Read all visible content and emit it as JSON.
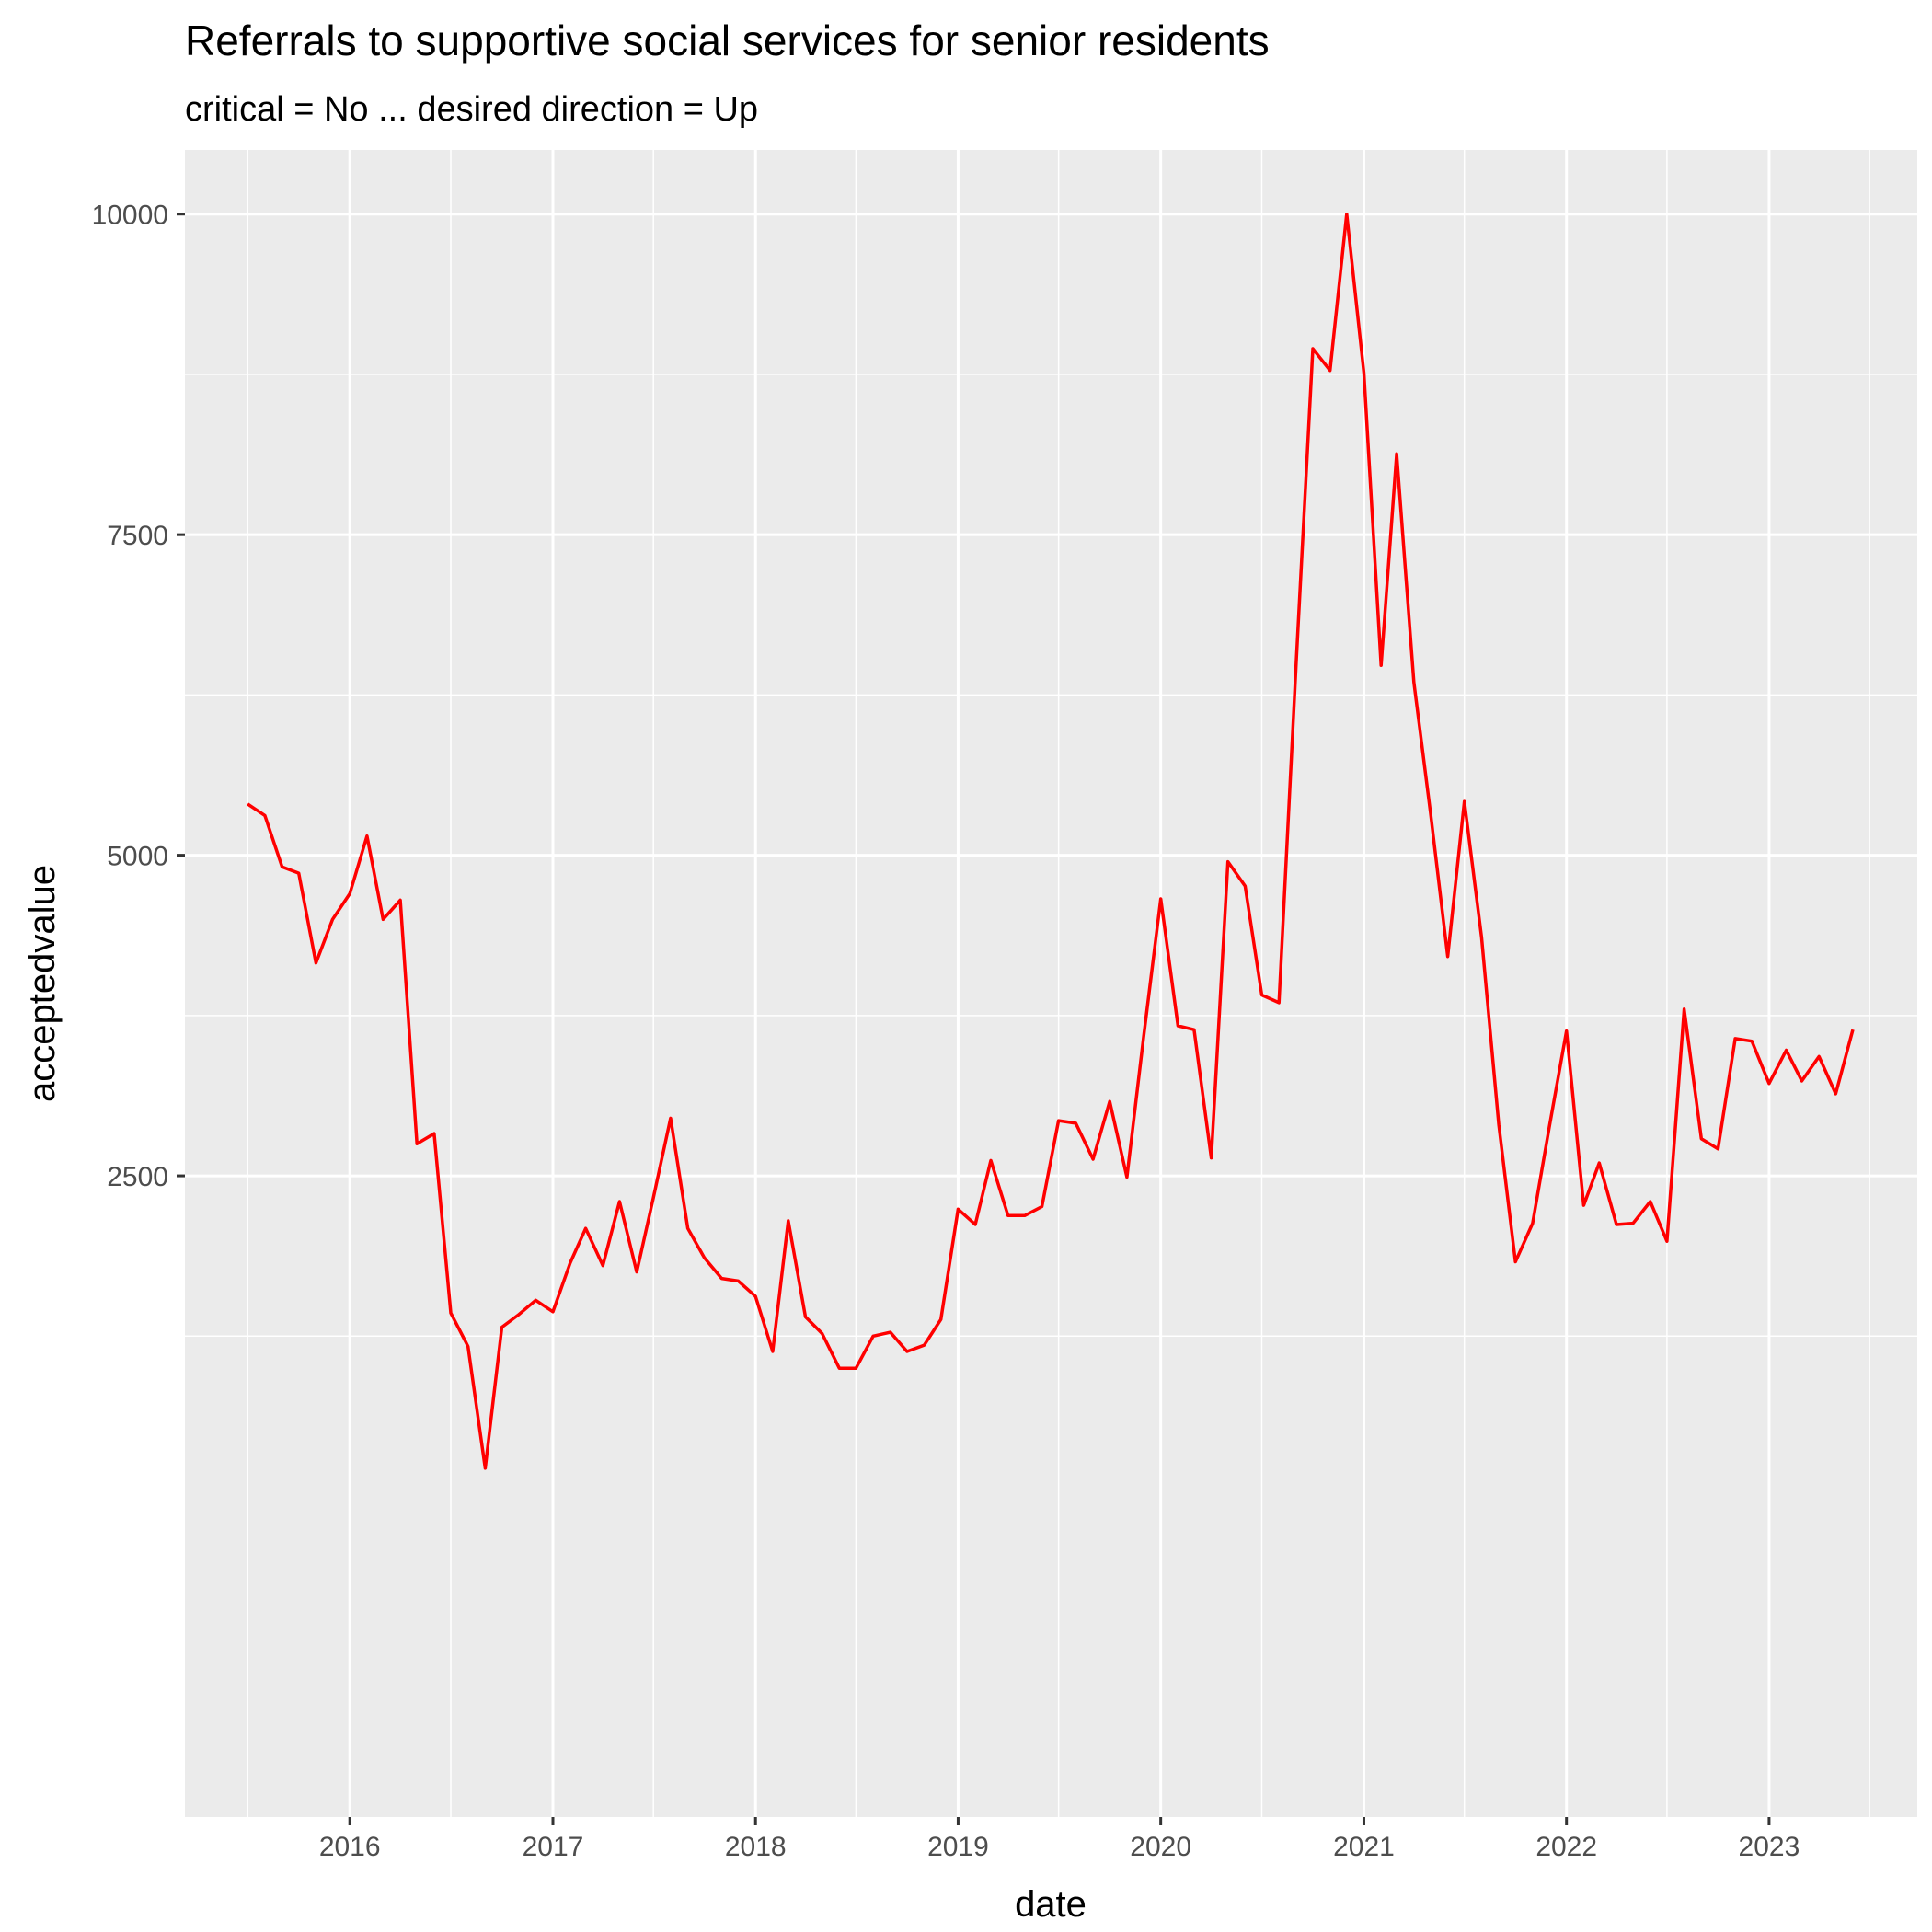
{
  "chart_data": {
    "type": "line",
    "title": "Referrals to supportive social services for senior residents",
    "subtitle": "critical = No ... desired direction = Up",
    "xlabel": "date",
    "ylabel": "acceptedvalue",
    "x_tick_labels": [
      "2016",
      "2017",
      "2018",
      "2019",
      "2020",
      "2021",
      "2022",
      "2023"
    ],
    "y_tick_labels": [
      "2500",
      "5000",
      "7500",
      "10000"
    ],
    "y_ticks": [
      2500,
      5000,
      7500,
      10000
    ],
    "ylim": [
      -2500,
      10500
    ],
    "xlim": [
      "2015-03-10",
      "2023-09-25"
    ],
    "grid": true,
    "line_color": "#ff0000",
    "panel_color": "#ebebeb",
    "series": [
      {
        "x": [
          "2015-07-01",
          "2015-08-01",
          "2015-09-01",
          "2015-10-01",
          "2015-11-01",
          "2015-12-01",
          "2016-01-01",
          "2016-02-01",
          "2016-03-01",
          "2016-04-01",
          "2016-05-01",
          "2016-06-01",
          "2016-07-01",
          "2016-08-01",
          "2016-09-01",
          "2016-10-01",
          "2016-11-01",
          "2016-12-01",
          "2017-01-01",
          "2017-02-01",
          "2017-03-01",
          "2017-04-01",
          "2017-05-01",
          "2017-06-01",
          "2017-07-01",
          "2017-08-01",
          "2017-09-01",
          "2017-10-01",
          "2017-11-01",
          "2017-12-01",
          "2018-01-01",
          "2018-02-01",
          "2018-03-01",
          "2018-04-01",
          "2018-05-01",
          "2018-06-01",
          "2018-07-01",
          "2018-08-01",
          "2018-09-01",
          "2018-10-01",
          "2018-11-01",
          "2018-12-01",
          "2019-01-01",
          "2019-02-01",
          "2019-03-01",
          "2019-04-01",
          "2019-05-01",
          "2019-06-01",
          "2019-07-01",
          "2019-08-01",
          "2019-09-01",
          "2019-10-01",
          "2019-11-01",
          "2019-12-01",
          "2020-01-01",
          "2020-02-01",
          "2020-03-01",
          "2020-04-01",
          "2020-05-01",
          "2020-06-01",
          "2020-07-01",
          "2020-08-01",
          "2020-09-01",
          "2020-10-01",
          "2020-11-01",
          "2020-12-01",
          "2021-01-01",
          "2021-02-01",
          "2021-03-01",
          "2021-04-01",
          "2021-05-01",
          "2021-06-01",
          "2021-07-01",
          "2021-08-01",
          "2021-09-01",
          "2021-10-01",
          "2021-11-01",
          "2021-12-01",
          "2022-01-01",
          "2022-02-01",
          "2022-03-01",
          "2022-04-01",
          "2022-05-01",
          "2022-06-01",
          "2022-07-01",
          "2022-08-01",
          "2022-09-01",
          "2022-10-01",
          "2022-11-01",
          "2022-12-01",
          "2023-01-01",
          "2023-02-01",
          "2023-03-01",
          "2023-04-01",
          "2023-05-01",
          "2023-06-01"
        ],
        "values": [
          5400,
          5310,
          4910,
          4860,
          4160,
          4500,
          4700,
          5150,
          4500,
          4650,
          2750,
          2830,
          1430,
          1170,
          220,
          1320,
          1420,
          1530,
          1440,
          1820,
          2090,
          1800,
          2300,
          1750,
          2330,
          2950,
          2090,
          1860,
          1700,
          1680,
          1560,
          1130,
          2150,
          1400,
          1270,
          1000,
          1000,
          1250,
          1280,
          1130,
          1180,
          1380,
          2240,
          2120,
          2620,
          2190,
          2190,
          2260,
          2930,
          2910,
          2630,
          3080,
          2490,
          3580,
          4660,
          3670,
          3640,
          2640,
          4950,
          4760,
          3910,
          3850,
          6500,
          8950,
          8780,
          10000,
          8760,
          6480,
          8130,
          6350,
          5330,
          4210,
          5420,
          4360,
          2900,
          1830,
          2130,
          2880,
          3630,
          2270,
          2600,
          2120,
          2130,
          2300,
          1990,
          3800,
          2790,
          2710,
          3570,
          3550,
          3220,
          3480,
          3240,
          3430,
          3140,
          3640
        ]
      }
    ]
  }
}
